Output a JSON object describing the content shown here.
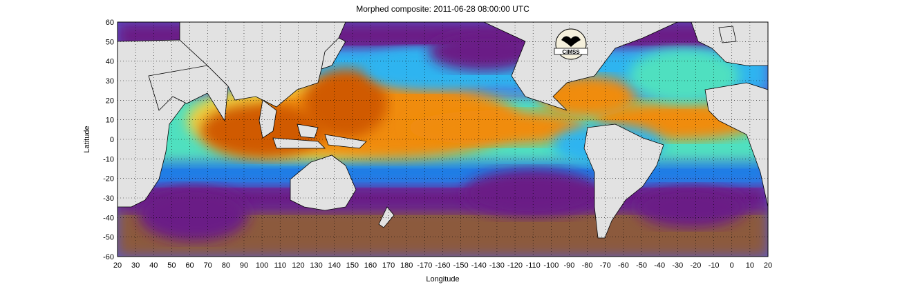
{
  "title": "Morphed composite: 2011-06-28 08:00:00 UTC",
  "colors": {
    "land": "#e2e2e2",
    "coast": "#000000",
    "grid": "#000000",
    "tpw_scale": [
      "#8c5a3c",
      "#6a1f86",
      "#5a5ad0",
      "#1f7fe6",
      "#2fb4f0",
      "#50e0c0",
      "#a0f060",
      "#f0d040",
      "#f08c10",
      "#d05a00",
      "#8a3a10"
    ]
  },
  "chart_data": {
    "type": "heatmap",
    "title": "Morphed composite: 2011-06-28 08:00:00 UTC",
    "xlabel": "Longitude",
    "ylabel": "Latitude",
    "xlim": [
      20,
      380
    ],
    "ylim": [
      -60,
      60
    ],
    "x_ticks": [
      "20",
      "30",
      "40",
      "50",
      "60",
      "70",
      "80",
      "90",
      "100",
      "110",
      "120",
      "130",
      "140",
      "150",
      "160",
      "170",
      "180",
      "-170",
      "-160",
      "-150",
      "-140",
      "-130",
      "-120",
      "-110",
      "-100",
      "-90",
      "-80",
      "-70",
      "-60",
      "-50",
      "-40",
      "-30",
      "-20",
      "-10",
      "0",
      "10",
      "20"
    ],
    "y_ticks": [
      "60",
      "50",
      "40",
      "30",
      "20",
      "10",
      "0",
      "-10",
      "-20",
      "-30",
      "-40",
      "-50",
      "-60"
    ],
    "grid": true
  },
  "logo": {
    "text": "CIMSS"
  }
}
